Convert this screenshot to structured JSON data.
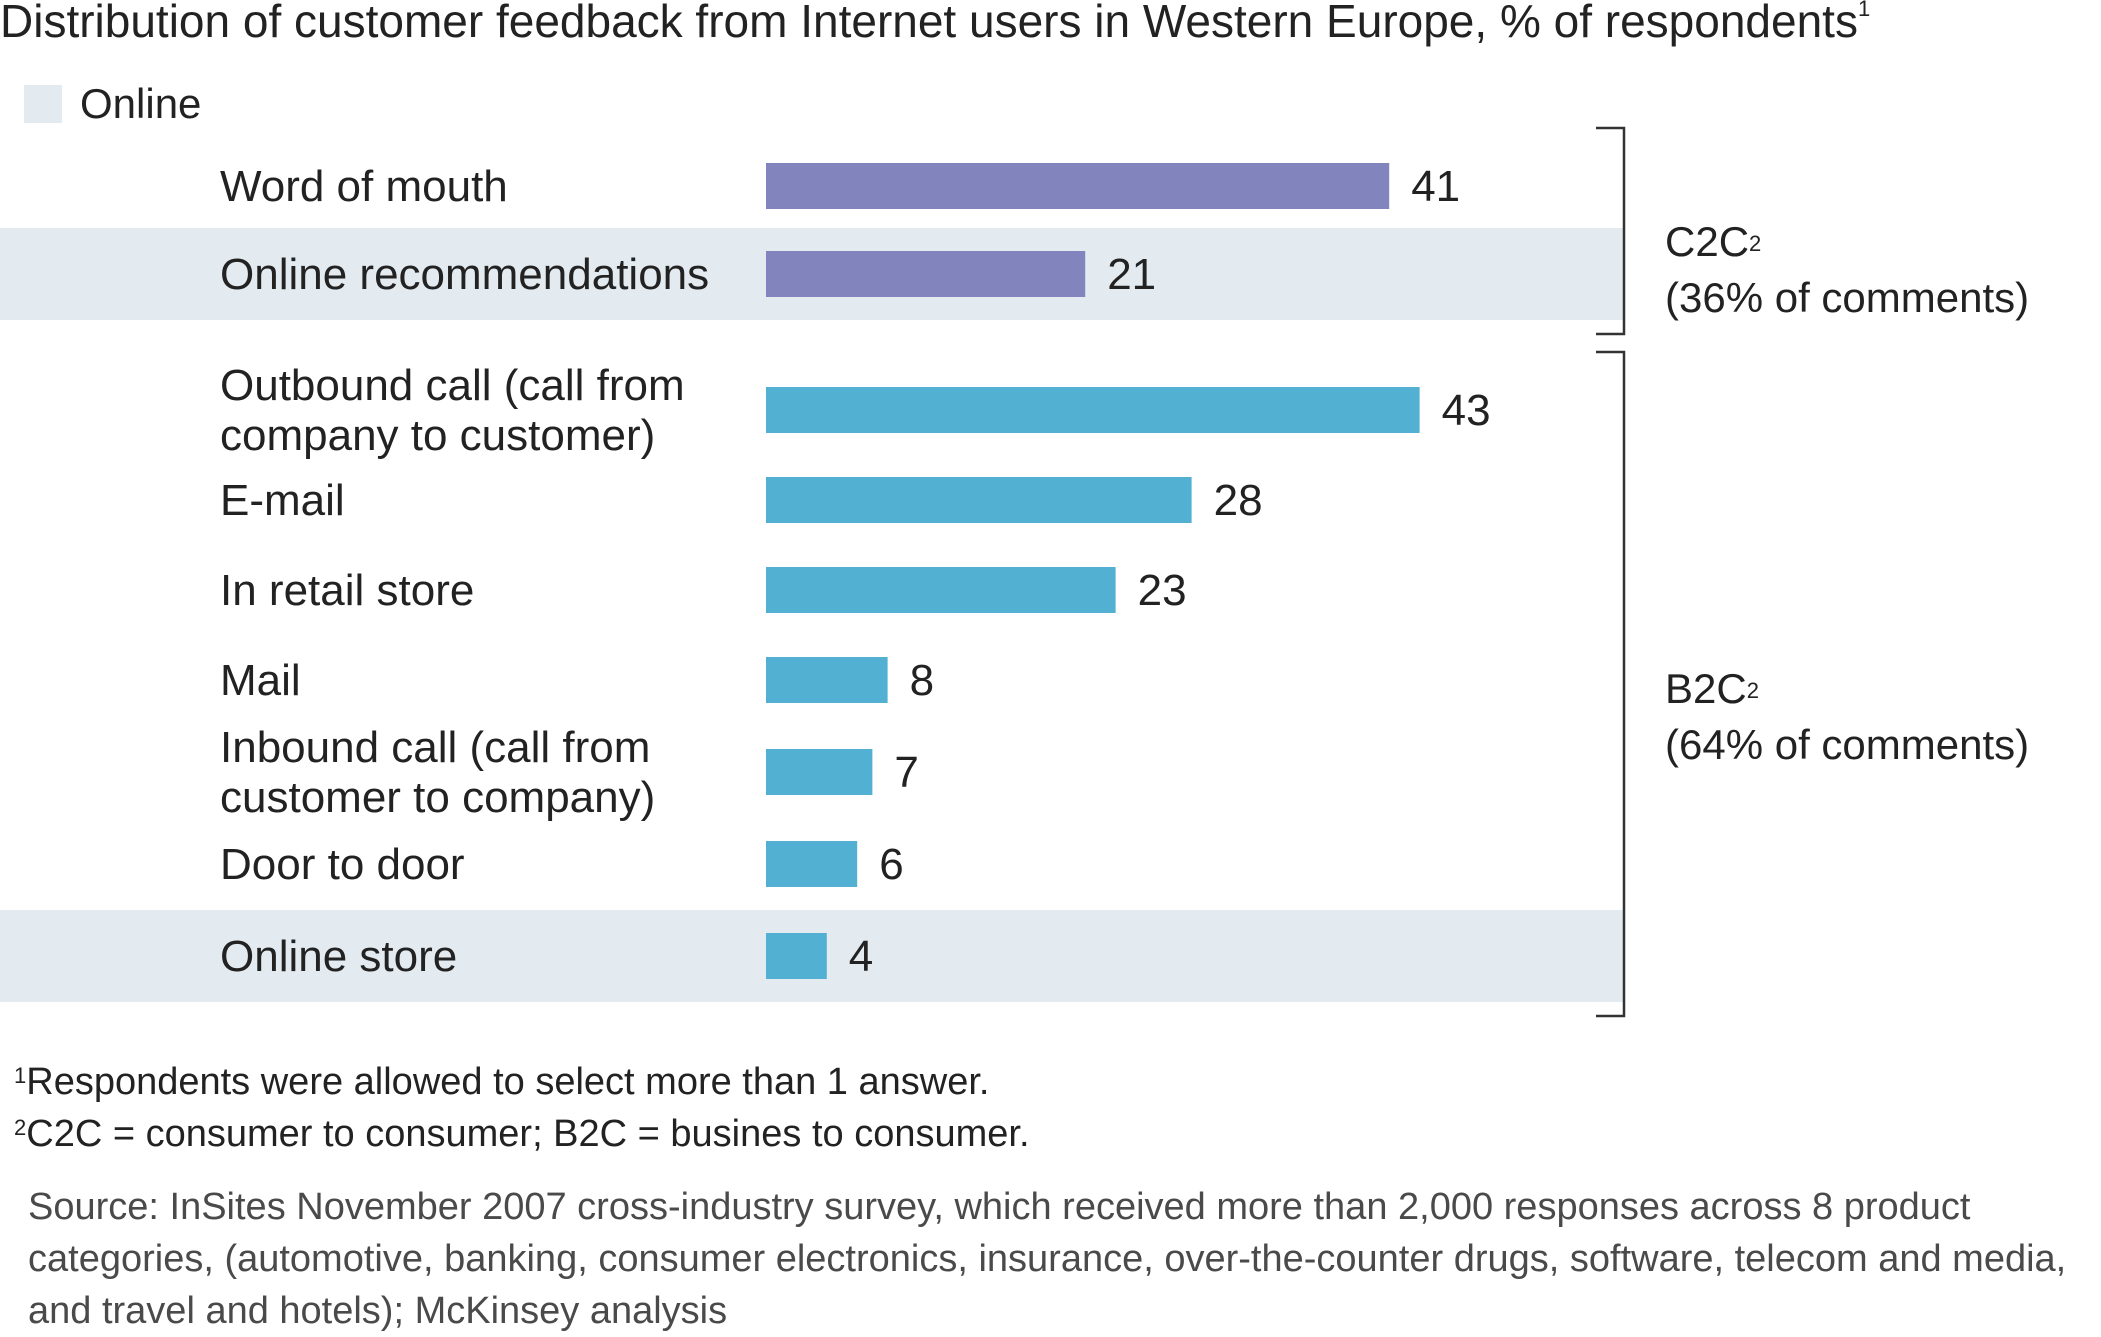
{
  "chart_data": {
    "type": "bar",
    "orientation": "horizontal",
    "title": "Distribution of customer feedback from Internet users in Western Europe, % of respondents",
    "title_footnote": "1",
    "legend": [
      {
        "label": "Online",
        "color": "#e3eaf0"
      }
    ],
    "categories": [
      [
        "Word of mouth"
      ],
      [
        "Online recommendations"
      ],
      [
        "Outbound call (call from",
        "company to customer)"
      ],
      [
        "E-mail"
      ],
      [
        "In retail store"
      ],
      [
        "Mail"
      ],
      [
        "Inbound call (call from",
        "customer to company)"
      ],
      [
        "Door to door"
      ],
      [
        "Online store"
      ]
    ],
    "values": [
      41,
      21,
      43,
      28,
      23,
      8,
      7,
      6,
      4
    ],
    "online": [
      false,
      true,
      false,
      false,
      false,
      false,
      false,
      false,
      true
    ],
    "bar_colors": [
      "#8184bd",
      "#8184bd",
      "#52b1d2",
      "#52b1d2",
      "#52b1d2",
      "#52b1d2",
      "#52b1d2",
      "#52b1d2",
      "#52b1d2"
    ],
    "xlim": [
      0,
      45
    ],
    "groups": [
      {
        "label": "C2C",
        "footnote": "2",
        "sublabel": "(36% of comments)",
        "members": [
          0,
          1
        ]
      },
      {
        "label": "B2C",
        "footnote": "2",
        "sublabel": "(64% of comments)",
        "members": [
          2,
          3,
          4,
          5,
          6,
          7,
          8
        ]
      }
    ]
  },
  "notes": [
    {
      "marker": "1",
      "text": "Respondents were allowed to select more than 1 answer."
    },
    {
      "marker": "2",
      "text": "C2C = consumer to consumer; B2C = busines to consumer."
    }
  ],
  "source": "Source: InSites November 2007 cross-industry survey, which received more than 2,000 responses across 8 product categories, (automotive, banking, consumer electronics, insurance, over-the-counter drugs, software, telecom and media, and travel and hotels); McKinsey analysis"
}
